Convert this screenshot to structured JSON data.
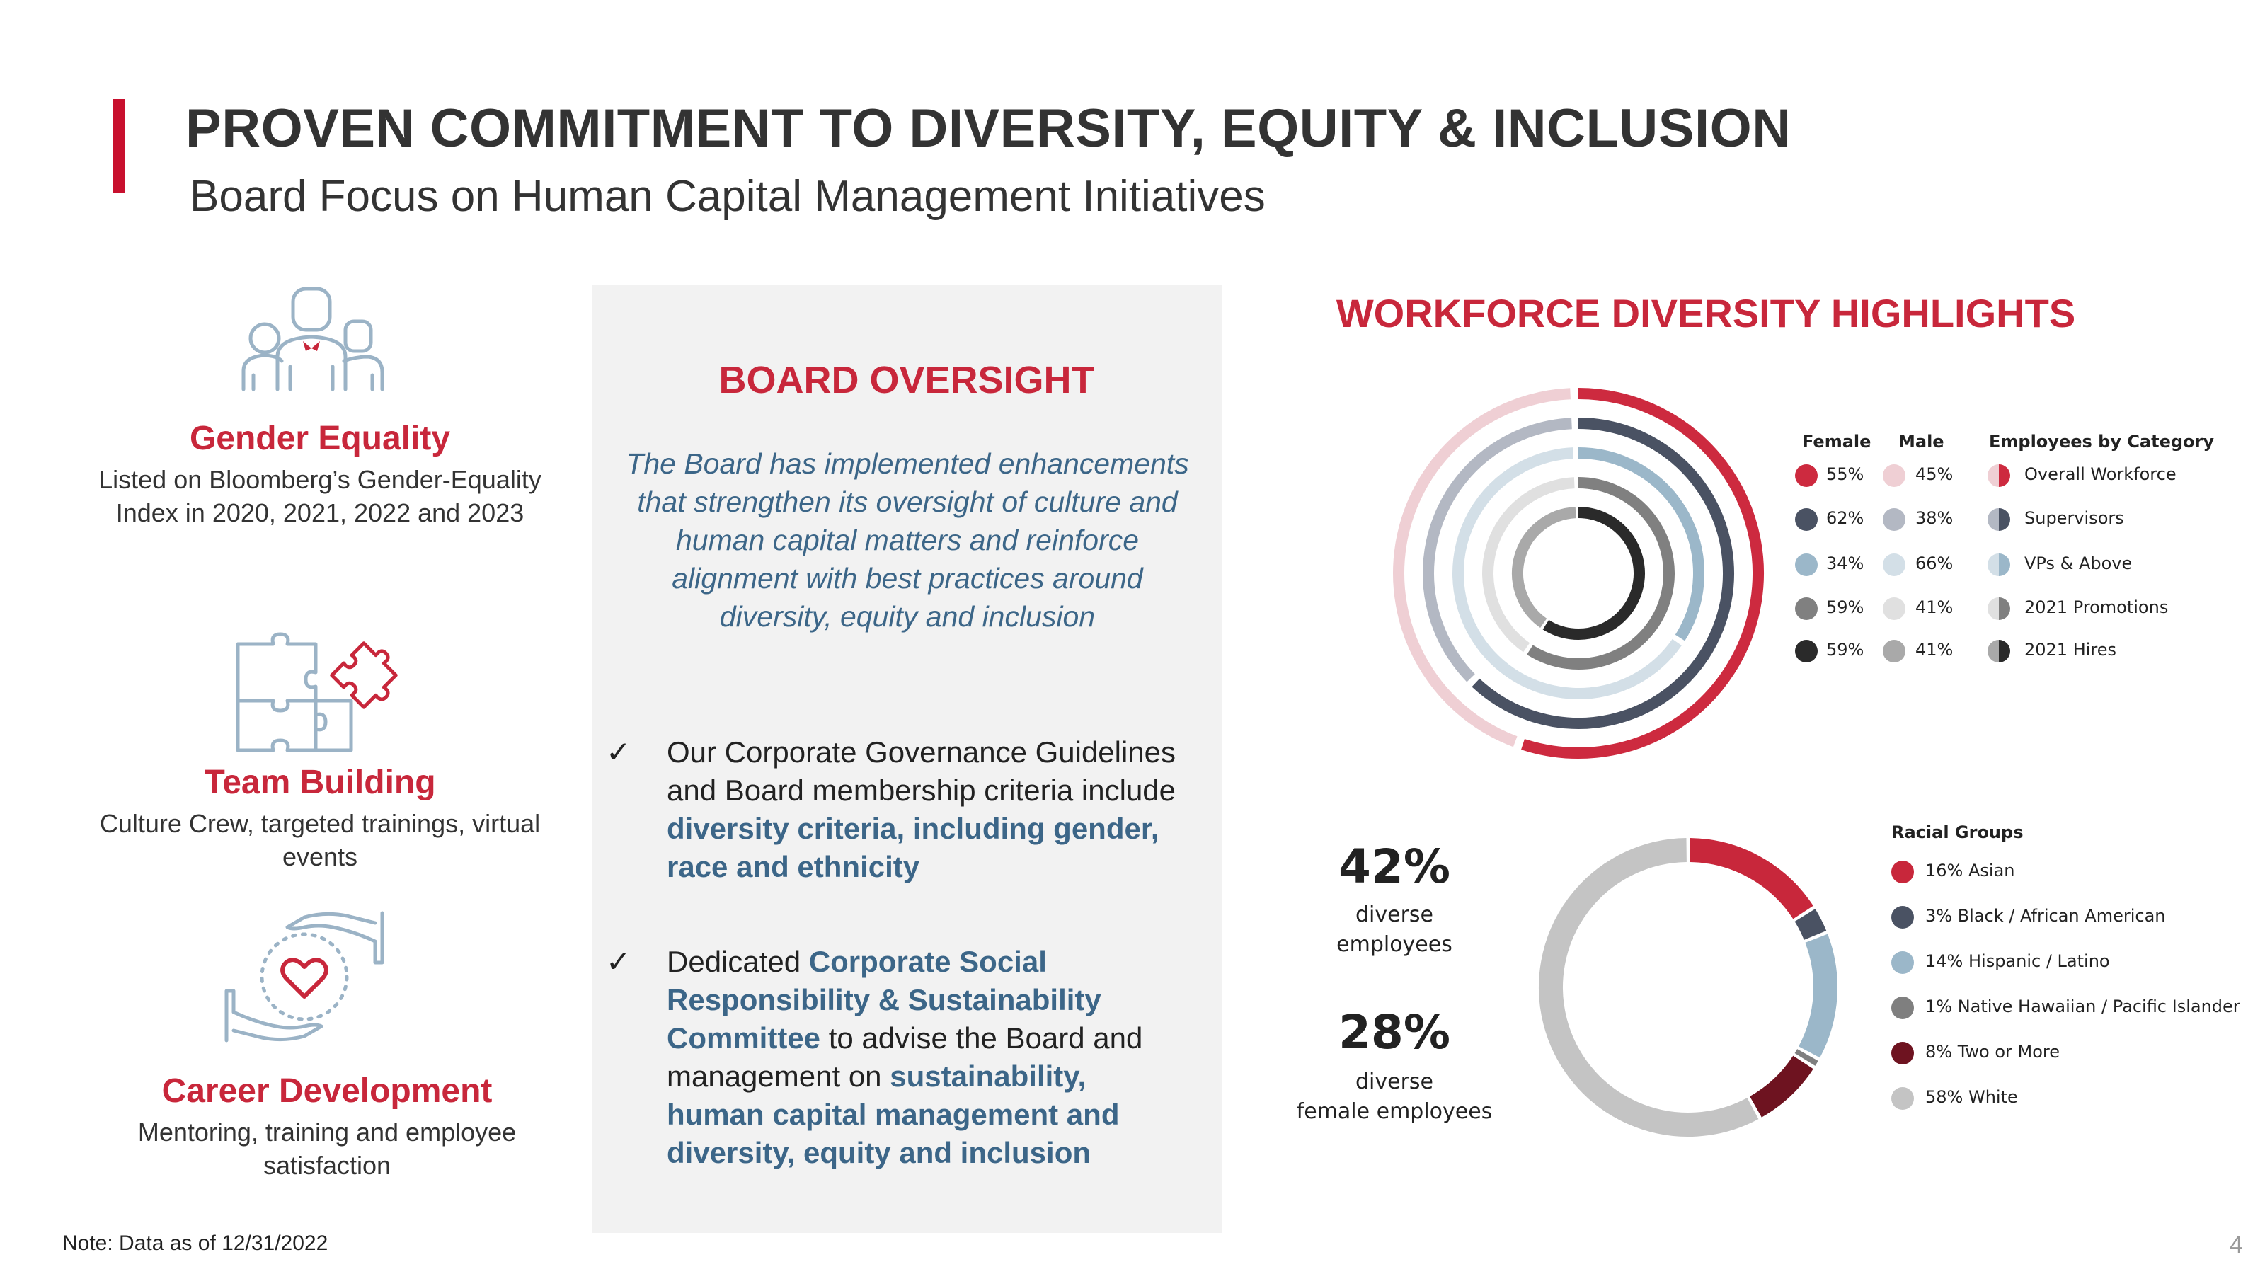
{
  "header": {
    "title": "PROVEN COMMITMENT TO DIVERSITY, EQUITY & INCLUSION",
    "subtitle": "Board Focus on Human Capital Management Initiatives"
  },
  "pillars": [
    {
      "icon": "people-group-icon",
      "title": "Gender Equality",
      "text": "Listed on Bloomberg’s Gender-Equality Index in 2020, 2021, 2022 and 2023"
    },
    {
      "icon": "puzzle-icon",
      "title": "Team Building",
      "text": "Culture Crew, targeted trainings, virtual events"
    },
    {
      "icon": "hands-heart-icon",
      "title": "Career Development",
      "text": "Mentoring, training and employee satisfaction"
    }
  ],
  "board": {
    "title": "BOARD OVERSIGHT",
    "quote": "The Board has implemented enhancements that strengthen its oversight of culture and human capital matters and reinforce alignment with best practices around diversity, equity and inclusion",
    "check_mark": "✓",
    "bullet1": {
      "part1": "Our Corporate Governance Guidelines and Board membership criteria include ",
      "highlight1": "diversity criteria, including gender, race and ethnicity"
    },
    "bullet2": {
      "part1": "Dedicated ",
      "highlight1": "Corporate Social Responsibility & Sustainability Committee",
      "part2": " to advise the Board and management on ",
      "highlight2": "sustainability, human capital management and diversity, equity and inclusion"
    }
  },
  "workforce": {
    "title": "WORKFORCE DIVERSITY HIGHLIGHTS",
    "legend_headers": {
      "female": "Female",
      "male": "Male",
      "category": "Employees by Category"
    }
  },
  "stats": [
    {
      "value": "42%",
      "label_line1": "diverse",
      "label_line2": "employees"
    },
    {
      "value": "28%",
      "label_line1": "diverse",
      "label_line2": "female employees"
    }
  ],
  "chart_data": [
    {
      "type": "radial_bar",
      "title": "WORKFORCE DIVERSITY HIGHLIGHTS",
      "categories": [
        "Overall Workforce",
        "Supervisors",
        "VPs & Above",
        "2021 Promotions",
        "2021 Hires"
      ],
      "series": [
        {
          "name": "Female",
          "values": [
            55,
            62,
            34,
            59,
            59
          ],
          "labels": [
            "55%",
            "62%",
            "34%",
            "59%",
            "59%"
          ]
        },
        {
          "name": "Male",
          "values": [
            45,
            38,
            66,
            41,
            41
          ],
          "labels": [
            "45%",
            "38%",
            "66%",
            "41%",
            "41%"
          ]
        }
      ],
      "female_colors": [
        "#cd2a3f",
        "#4a5263",
        "#9bb7c9",
        "#808080",
        "#2a2a2a"
      ],
      "male_colors": [
        "#efcfd4",
        "#b3b8c3",
        "#d3dfe7",
        "#e0e0e0",
        "#a9a9a9"
      ]
    },
    {
      "type": "pie",
      "title": "Racial Groups",
      "labels": [
        "Asian",
        "Black / African American",
        "Hispanic / Latino",
        "Native Hawaiian / Pacific Islander",
        "Two or More",
        "White"
      ],
      "values": [
        16,
        3,
        14,
        1,
        8,
        58
      ],
      "legend_labels": [
        "16% Asian",
        "3% Black / African American",
        "14% Hispanic / Latino",
        "1% Native Hawaiian / Pacific Islander",
        "8% Two or More",
        "58% White"
      ],
      "colors": [
        "#c8273b",
        "#4a5263",
        "#9bb7c9",
        "#7f7f7f",
        "#6e1320",
        "#c4c4c4"
      ]
    }
  ],
  "footer": {
    "note": "Note: Data as of 12/31/2022",
    "page_number": "4"
  }
}
